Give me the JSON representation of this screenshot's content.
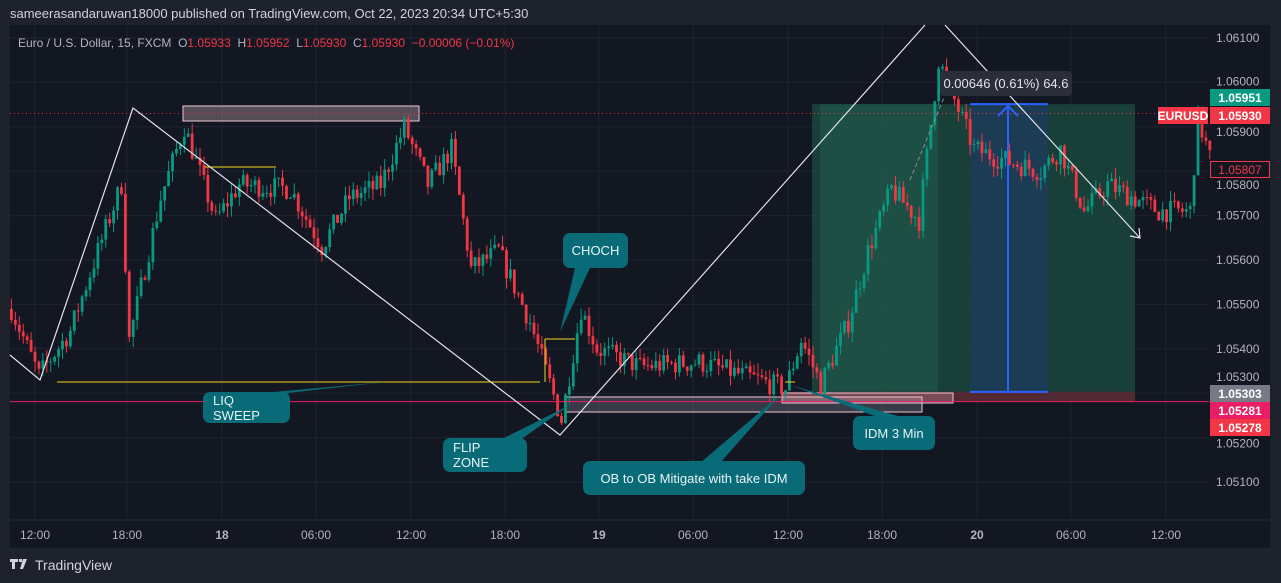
{
  "header": {
    "published": "sameerasandaruwan18000 published on TradingView.com, Oct 22, 2023 20:34 UTC+5:30"
  },
  "legend": {
    "symbol": "Euro / U.S. Dollar, 15, FXCM",
    "o_label": "O",
    "o": "1.05933",
    "h_label": "H",
    "h": "1.05952",
    "l_label": "L",
    "l": "1.05930",
    "c_label": "C",
    "c": "1.05930",
    "change": "−0.00006 (−0.01%)"
  },
  "price_labels": {
    "target": "1.05951",
    "symbol": "EURUSD",
    "last": "1.05930",
    "crosshair": "1.05807",
    "entry": "1.05303",
    "line": "1.05281",
    "stop": "1.05278"
  },
  "measure": {
    "text": "0.00646 (0.61%) 64.6"
  },
  "annotations": {
    "choch": "CHOCH",
    "liq_sweep": "LIQ SWEEP",
    "flip_zone": "FLIP ZONE",
    "ob_mitigate": "OB to OB Mitigate with take IDM",
    "idm": "IDM 3 Min"
  },
  "brand": {
    "name": "TradingView"
  },
  "colors": {
    "up": "#089981",
    "down": "#f23645",
    "background": "#131722",
    "callout": "#0a6b78",
    "position_profit": "#1b4a40",
    "position_loss": "#5a2a35",
    "measure": "#2962ff"
  },
  "chart_data": {
    "type": "candlestick",
    "symbol": "EURUSD",
    "interval": "15",
    "ylim": [
      1.0505,
      1.0613
    ],
    "y_ticks": [
      "1.06100",
      "1.06000",
      "1.05900",
      "1.05800",
      "1.05700",
      "1.05600",
      "1.05500",
      "1.05400",
      "1.05300",
      "1.05200",
      "1.05100"
    ],
    "x_ticks": [
      "12:00",
      "18:00",
      "18",
      "06:00",
      "12:00",
      "18:00",
      "19",
      "06:00",
      "12:00",
      "18:00",
      "20",
      "06:00",
      "12:00"
    ],
    "grid": true,
    "price_path": [
      {
        "t": "2023-10-17T10:30",
        "p": 1.0549
      },
      {
        "t": "2023-10-17T12:15",
        "p": 1.0534
      },
      {
        "t": "2023-10-17T14:15",
        "p": 1.0544
      },
      {
        "t": "2023-10-17T16:00",
        "p": 1.0562
      },
      {
        "t": "2023-10-17T17:30",
        "p": 1.0577
      },
      {
        "t": "2023-10-17T18:00",
        "p": 1.0542
      },
      {
        "t": "2023-10-17T20:00",
        "p": 1.0574
      },
      {
        "t": "2023-10-17T21:30",
        "p": 1.059
      },
      {
        "t": "2023-10-17T23:30",
        "p": 1.0569
      },
      {
        "t": "2023-10-18T01:00",
        "p": 1.0577
      },
      {
        "t": "2023-10-18T04:15",
        "p": 1.0576
      },
      {
        "t": "2023-10-18T06:15",
        "p": 1.0563
      },
      {
        "t": "2023-10-18T08:00",
        "p": 1.0574
      },
      {
        "t": "2023-10-18T10:00",
        "p": 1.0577
      },
      {
        "t": "2023-10-18T11:30",
        "p": 1.059
      },
      {
        "t": "2023-10-18T13:00",
        "p": 1.0577
      },
      {
        "t": "2023-10-18T14:30",
        "p": 1.0585
      },
      {
        "t": "2023-10-18T15:45",
        "p": 1.0558
      },
      {
        "t": "2023-10-18T17:30",
        "p": 1.0562
      },
      {
        "t": "2023-10-18T19:30",
        "p": 1.0546
      },
      {
        "t": "2023-10-18T21:30",
        "p": 1.0524
      },
      {
        "t": "2023-10-18T22:45",
        "p": 1.0549
      },
      {
        "t": "2023-10-18T23:45",
        "p": 1.054
      },
      {
        "t": "2023-10-19T02:30",
        "p": 1.0536
      },
      {
        "t": "2023-10-19T06:15",
        "p": 1.0537
      },
      {
        "t": "2023-10-19T10:00",
        "p": 1.0533
      },
      {
        "t": "2023-10-19T11:45",
        "p": 1.0531
      },
      {
        "t": "2023-10-19T12:45",
        "p": 1.0542
      },
      {
        "t": "2023-10-19T14:00",
        "p": 1.0532
      },
      {
        "t": "2023-10-19T15:45",
        "p": 1.0546
      },
      {
        "t": "2023-10-19T17:00",
        "p": 1.0562
      },
      {
        "t": "2023-10-19T18:30",
        "p": 1.0576
      },
      {
        "t": "2023-10-19T20:15",
        "p": 1.0569
      },
      {
        "t": "2023-10-19T21:30",
        "p": 1.0605
      },
      {
        "t": "2023-10-19T22:30",
        "p": 1.0596
      },
      {
        "t": "2023-10-19T23:45",
        "p": 1.0585
      },
      {
        "t": "2023-10-20T01:15",
        "p": 1.0583
      },
      {
        "t": "2023-10-20T04:00",
        "p": 1.058
      },
      {
        "t": "2023-10-20T05:15",
        "p": 1.0585
      },
      {
        "t": "2023-10-20T06:45",
        "p": 1.0571
      },
      {
        "t": "2023-10-20T08:15",
        "p": 1.0577
      },
      {
        "t": "2023-10-20T11:30",
        "p": 1.0571
      },
      {
        "t": "2023-10-20T13:30",
        "p": 1.0571
      },
      {
        "t": "2023-10-20T14:00",
        "p": 1.0592
      },
      {
        "t": "2023-10-20T14:45",
        "p": 1.0583
      }
    ],
    "levels": {
      "last": 1.0593,
      "target": 1.05951,
      "entry": 1.05303,
      "line": 1.05281,
      "stop": 1.05278,
      "crosshair": 1.05807
    }
  }
}
